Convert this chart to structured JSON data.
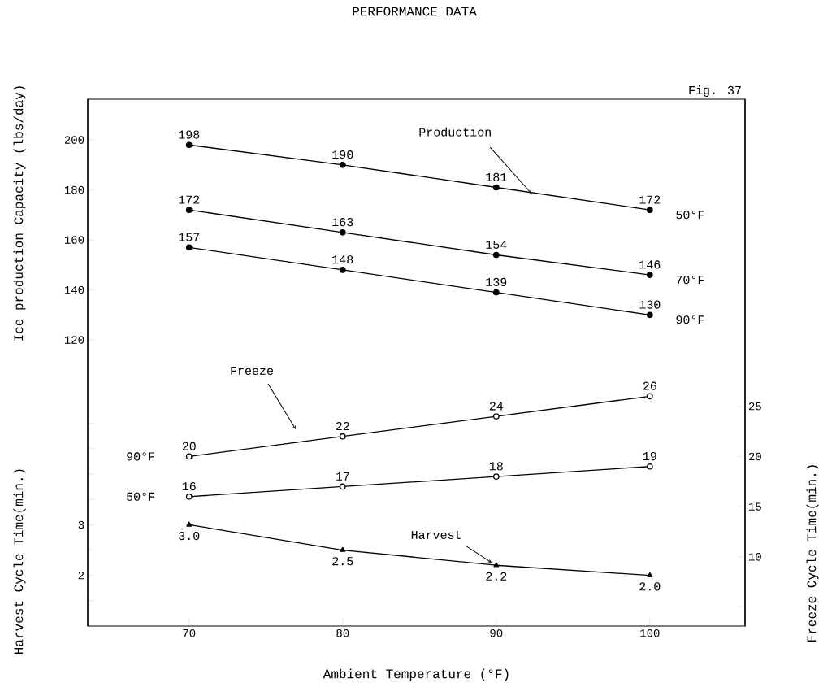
{
  "chart_data": {
    "type": "line",
    "title": "PERFORMANCE DATA",
    "xlabel": "Ambient Temperature (°F)",
    "ylabel": "Ice production Capacity (lbs/day)",
    "y2label": "Freeze Cycle Time(min.)",
    "y3label": "Harvest Cycle Time(min.)",
    "x": [
      70,
      80,
      90,
      100
    ],
    "xlim": [
      63.4,
      106.2
    ],
    "xticks": [
      70,
      80,
      90,
      100
    ],
    "ylim": [
      5.5,
      216.3
    ],
    "yticks": [
      120,
      140,
      160,
      180,
      200
    ],
    "y2lim": [
      3.1,
      55.6
    ],
    "y2ticks": [
      {
        "value": 5,
        "label": null
      },
      10,
      15,
      20,
      25
    ],
    "y3lim": [
      1.0,
      11.4
    ],
    "y3ticks": [
      {
        "value": 1.5,
        "label": null
      },
      2,
      {
        "value": 2.5,
        "label": null
      },
      3,
      {
        "value": 3.5,
        "label": null
      },
      {
        "value": 4,
        "label": null
      },
      {
        "value": 4.5,
        "label": null
      },
      {
        "value": 5,
        "label": null
      }
    ],
    "line_style": "solid",
    "data_labels": true,
    "grid": false,
    "legend": false,
    "series": [
      {
        "name": "50°F",
        "color": "#000000",
        "marker": "circle",
        "axis": "y",
        "values": [
          198,
          190,
          181,
          172
        ]
      },
      {
        "name": "70°F",
        "color": "#000000",
        "marker": "circle",
        "axis": "y",
        "values": [
          172,
          163,
          154,
          146
        ]
      },
      {
        "name": "90°F",
        "color": "#000000",
        "marker": "circle",
        "axis": "y",
        "values": [
          157,
          148,
          139,
          130
        ]
      },
      {
        "name": "90°F",
        "color": "#000000",
        "marker": "circle",
        "axis": "y2",
        "values": [
          20,
          22,
          24,
          26
        ]
      },
      {
        "name": "50°F",
        "color": "#000000",
        "marker": "circle",
        "axis": "y2",
        "values": [
          16,
          17,
          18,
          19
        ]
      },
      {
        "color": "#000000",
        "marker": "triangle",
        "axis": "y3",
        "values": [
          3.0,
          2.5,
          2.2,
          2.0
        ],
        "value_labels": [
          "3.0",
          "2.5",
          "2.2",
          "2.0"
        ]
      }
    ],
    "annotations": [
      {
        "text": "Production",
        "x": 92.3,
        "y": 178.5
      },
      "Freeze",
      {
        "text": "Harvest",
        "x": 89.7,
        "y": 30.9
      },
      "Fig. 37"
    ]
  }
}
